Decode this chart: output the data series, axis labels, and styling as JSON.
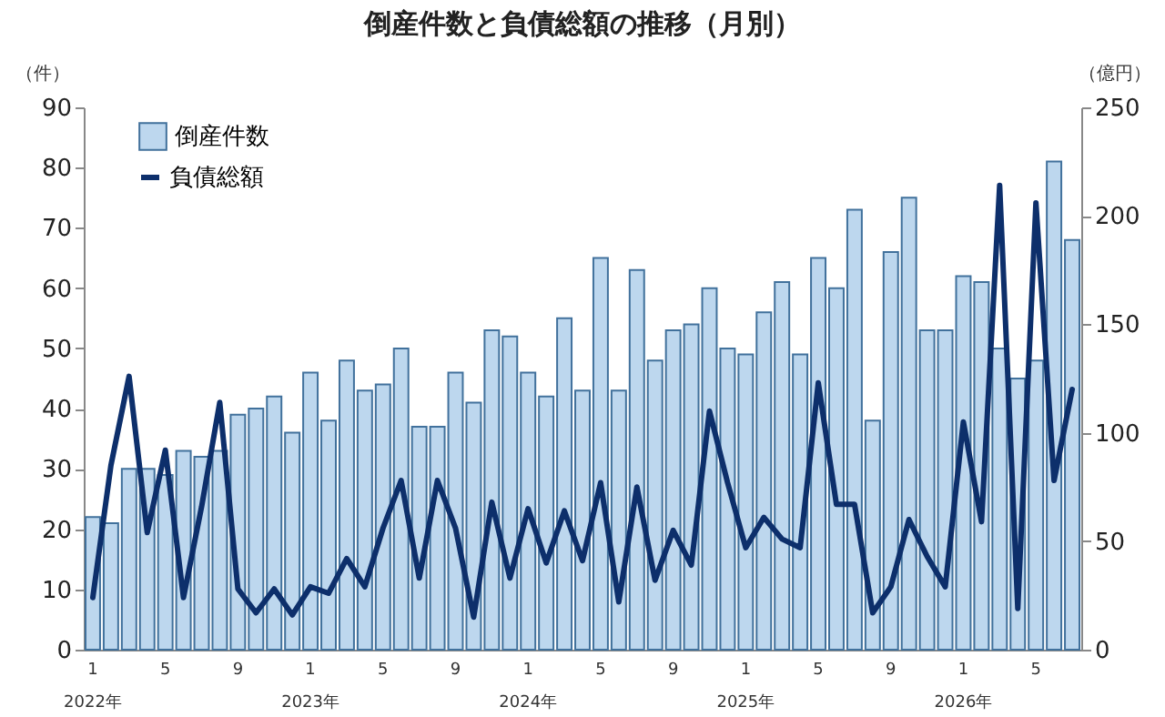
{
  "chart_data": {
    "type": "bar",
    "title": "倒産件数と負債総額の推移（月別）",
    "ylabel": "（件）",
    "y2label": "（億円）",
    "categories": [
      "1\n2022年",
      null,
      null,
      null,
      "5",
      null,
      null,
      null,
      "9",
      null,
      null,
      null,
      "1\n2023年",
      null,
      null,
      null,
      "5",
      null,
      null,
      null,
      "9",
      null,
      null,
      null,
      "1\n2024年",
      null,
      null,
      null,
      "5",
      null,
      null,
      null,
      "9",
      null,
      null,
      null,
      "1\n2025年",
      null,
      null,
      null,
      "5",
      null,
      null,
      null,
      "9",
      null,
      null,
      null,
      "1\n2026年",
      null,
      null,
      null,
      "5",
      null,
      null
    ],
    "series": [
      {
        "name": "倒産件数",
        "color": "#bdd7ee",
        "values": [
          22,
          21,
          30,
          30,
          29,
          33,
          32,
          33,
          39,
          40,
          42,
          36,
          46,
          38,
          48,
          43,
          44,
          50,
          37,
          37,
          46,
          41,
          53,
          52,
          46,
          42,
          55,
          43,
          65,
          43,
          63,
          48,
          53,
          54,
          60,
          50,
          49,
          56,
          61,
          49,
          65,
          60,
          73,
          38,
          66,
          75,
          53,
          53,
          62,
          61,
          50,
          45,
          48,
          81,
          68
        ]
      },
      {
        "name": "負債総額",
        "type": "line",
        "axis": "y2",
        "color": "#0d2f6b",
        "values": [
          24,
          85,
          126,
          54,
          92,
          24,
          66,
          114,
          28,
          17,
          28,
          16,
          29,
          26,
          42,
          29,
          56,
          78,
          33,
          78,
          56,
          15,
          68,
          33,
          65,
          40,
          64,
          41,
          77,
          22,
          75,
          32,
          55,
          39,
          110,
          77,
          47,
          61,
          51,
          47,
          123,
          67,
          67,
          17,
          29,
          60,
          43,
          29,
          105,
          59,
          214,
          19,
          206,
          78,
          120
        ]
      }
    ],
    "ylim": [
      0,
      90
    ],
    "yticks": [
      0,
      10,
      20,
      30,
      40,
      50,
      60,
      70,
      80,
      90
    ],
    "y2lim": [
      0,
      250
    ],
    "y2ticks": [
      0,
      50,
      100,
      150,
      200,
      250
    ],
    "legend": "top left"
  }
}
